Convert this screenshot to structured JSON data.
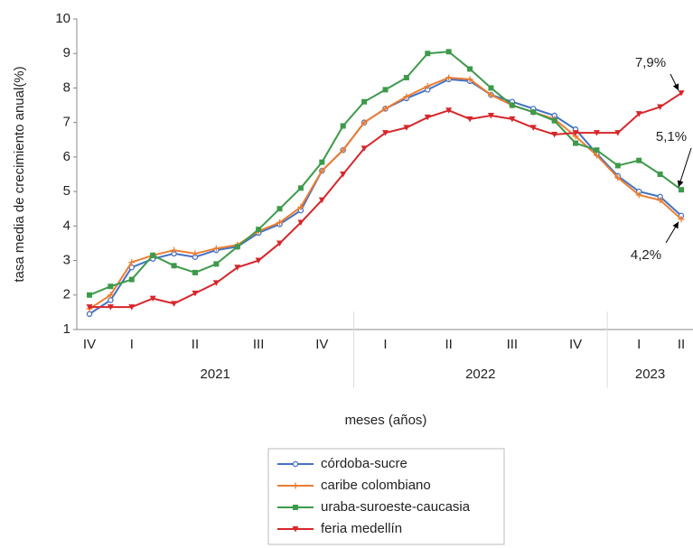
{
  "chart_data": {
    "type": "line",
    "y_label": "tasa media de crecimiento anual(%)",
    "x_label": "meses (años)",
    "categories": [
      "IV",
      null,
      "I",
      null,
      null,
      "II",
      null,
      null,
      "III",
      null,
      null,
      "IV",
      null,
      null,
      "I",
      null,
      null,
      "II",
      null,
      null,
      "III",
      null,
      null,
      "IV",
      null,
      null,
      "I",
      null,
      "II"
    ],
    "x_groups": [
      {
        "label": "2021",
        "count": 13
      },
      {
        "label": "2022",
        "count": 12
      },
      {
        "label": "2023",
        "count": 4
      }
    ],
    "ylim": [
      1,
      10
    ],
    "yticks": [
      1,
      2,
      3,
      4,
      5,
      6,
      7,
      8,
      9,
      10
    ],
    "grid": false,
    "legend": "bottom",
    "series": [
      {
        "name": "córdoba-sucre",
        "color": "#4472c4",
        "marker": "circle",
        "values": [
          1.45,
          1.85,
          2.8,
          3.05,
          3.2,
          3.1,
          3.3,
          3.4,
          3.8,
          4.05,
          4.45,
          5.6,
          6.2,
          7.0,
          7.4,
          7.7,
          7.95,
          8.25,
          8.2,
          7.8,
          7.6,
          7.4,
          7.2,
          6.8,
          6.1,
          5.45,
          5.0,
          4.85,
          4.3
        ]
      },
      {
        "name": "caribe colombiano",
        "color": "#ed7d31",
        "marker": "plus",
        "values": [
          1.6,
          2.0,
          2.95,
          3.15,
          3.3,
          3.2,
          3.35,
          3.45,
          3.85,
          4.1,
          4.55,
          5.6,
          6.2,
          7.0,
          7.4,
          7.75,
          8.05,
          8.3,
          8.25,
          7.8,
          7.5,
          7.3,
          7.1,
          6.6,
          6.05,
          5.4,
          4.9,
          4.75,
          4.2
        ]
      },
      {
        "name": "uraba-suroeste-caucasia",
        "color": "#3d9a4a",
        "marker": "square",
        "values": [
          2.0,
          2.25,
          2.45,
          3.15,
          2.85,
          2.65,
          2.9,
          3.4,
          3.9,
          4.5,
          5.1,
          5.85,
          6.9,
          7.6,
          7.95,
          8.3,
          9.0,
          9.05,
          8.55,
          8.0,
          7.5,
          7.3,
          7.05,
          6.4,
          6.2,
          5.75,
          5.9,
          5.5,
          5.05
        ]
      },
      {
        "name": "feria medellín",
        "color": "#d7262b",
        "marker": "triangle-down",
        "values": [
          1.65,
          1.65,
          1.65,
          1.9,
          1.75,
          2.05,
          2.35,
          2.8,
          3.0,
          3.5,
          4.1,
          4.75,
          5.5,
          6.25,
          6.7,
          6.85,
          7.15,
          7.35,
          7.1,
          7.2,
          7.1,
          6.85,
          6.65,
          6.7,
          6.7,
          6.7,
          7.25,
          7.45,
          7.85
        ]
      }
    ],
    "annotations": [
      {
        "text": "7,9%",
        "series": 3
      },
      {
        "text": "5,1%",
        "series": 2
      },
      {
        "text": "4,2%",
        "series": 1
      }
    ]
  }
}
